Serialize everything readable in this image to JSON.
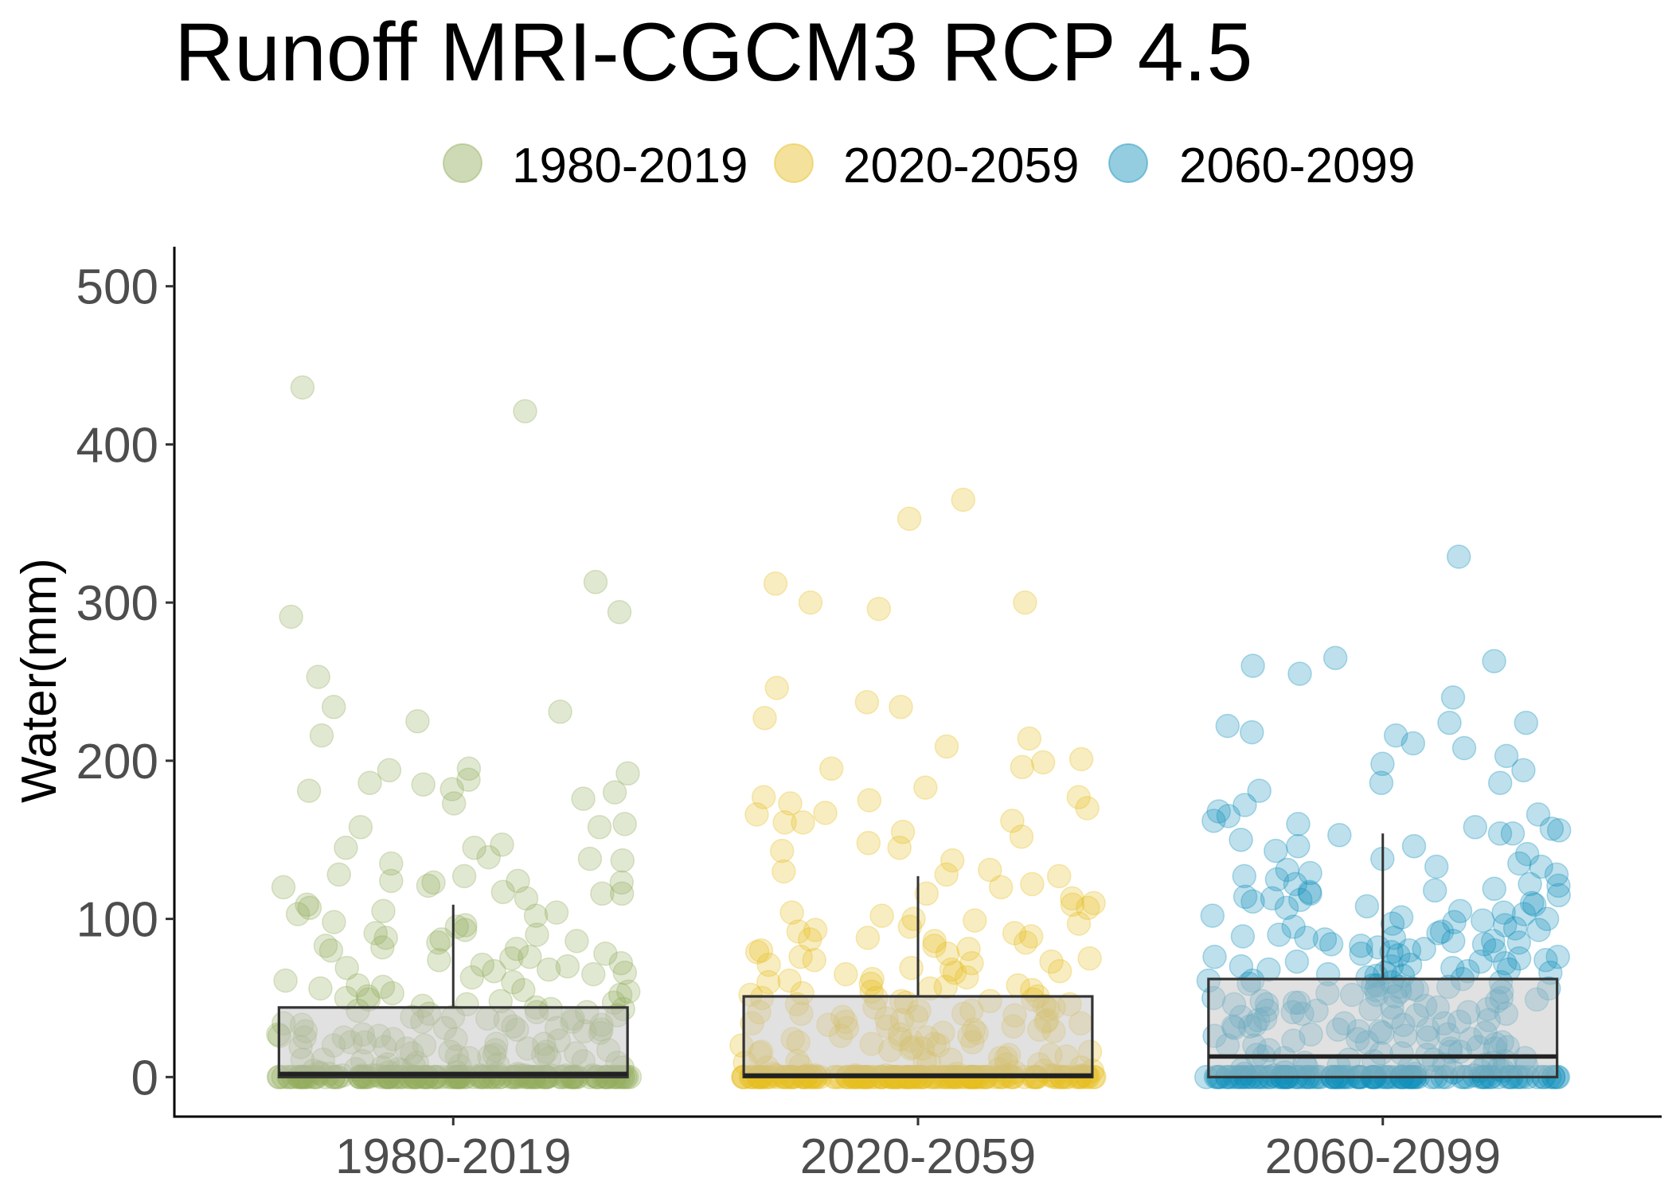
{
  "chart_data": {
    "type": "scatter",
    "overlay": "boxplot",
    "title": "Runoff MRI-CGCM3 RCP 4.5",
    "ylabel": "Water(mm)",
    "categories": [
      "1980-2019",
      "2020-2059",
      "2060-2099"
    ],
    "ylim": [
      -25,
      525
    ],
    "yticks": [
      0,
      100,
      200,
      300,
      400,
      500
    ],
    "grid": false,
    "legend": "top",
    "colors": [
      "#93AD5C",
      "#E6BD22",
      "#1190BA"
    ],
    "series": [
      {
        "name": "1980-2019",
        "box": {
          "lower_whisker": 0,
          "q1": 0,
          "median": 2,
          "q3": 44,
          "upper_whisker": 109
        },
        "values": [
          436,
          421,
          313,
          294,
          291,
          253,
          234,
          231,
          225,
          216,
          195,
          194,
          192,
          188,
          186,
          185,
          182,
          181,
          180,
          176,
          173,
          160,
          158,
          158,
          147,
          145,
          145,
          139,
          138,
          137,
          135,
          128,
          127,
          124,
          124,
          123,
          123,
          121,
          120,
          117,
          116,
          116,
          113,
          109,
          107,
          105,
          104,
          103,
          102,
          98,
          96,
          95,
          93,
          91,
          90,
          88,
          87,
          86,
          85,
          83,
          82,
          81,
          80,
          78,
          76,
          75,
          74,
          72,
          71,
          70,
          69,
          68,
          67,
          66,
          65,
          63,
          61,
          60,
          58,
          57,
          56,
          55,
          54,
          53,
          52,
          51,
          50,
          49,
          48,
          47,
          46,
          45,
          44,
          43,
          42,
          41,
          40,
          39,
          38,
          37,
          36,
          35,
          34,
          33,
          32,
          31,
          30,
          29,
          28,
          27,
          26,
          25,
          24,
          23,
          22,
          21,
          20,
          19,
          18,
          17,
          16,
          15,
          14,
          13,
          12,
          11,
          10,
          9,
          8,
          7,
          6,
          5,
          4,
          3,
          2,
          41,
          37,
          33,
          29,
          25,
          22,
          19,
          16,
          12,
          9,
          6,
          4,
          3,
          2,
          35,
          27,
          18,
          10,
          5,
          38,
          30,
          21,
          14,
          8,
          3,
          43,
          31,
          20,
          11,
          7,
          2,
          26,
          15,
          24,
          17,
          13,
          2,
          1,
          1,
          1,
          1,
          1,
          1,
          1,
          1,
          1,
          1,
          0,
          0,
          0,
          0,
          0,
          0,
          0,
          0,
          0,
          0,
          0,
          0,
          0,
          0,
          0,
          0,
          0,
          0,
          0,
          0,
          0,
          0,
          0,
          0,
          0,
          0,
          0,
          0,
          0,
          0,
          0,
          0,
          0,
          0,
          0,
          0,
          0,
          0,
          0,
          0,
          0,
          0,
          0,
          0,
          0,
          0,
          0,
          0,
          0,
          0,
          0,
          0,
          0,
          0,
          0,
          0,
          0,
          0,
          0,
          0,
          0,
          0,
          0,
          0,
          0,
          0,
          0,
          0,
          0,
          0,
          0,
          0,
          0,
          0,
          0,
          0,
          0,
          0,
          0,
          0,
          0,
          0,
          0,
          0,
          0,
          0,
          0,
          0,
          0,
          0,
          0,
          0,
          0,
          0,
          0,
          0,
          0,
          0,
          0,
          0,
          0,
          0,
          0,
          0,
          0,
          0,
          0,
          0,
          0,
          0,
          0,
          0,
          0,
          0,
          0,
          0,
          0,
          0,
          0,
          0,
          0,
          0,
          0,
          0,
          0,
          0,
          0,
          0,
          0,
          0
        ]
      },
      {
        "name": "2020-2059",
        "box": {
          "lower_whisker": 0,
          "q1": 0,
          "median": 1,
          "q3": 51,
          "upper_whisker": 127
        },
        "values": [
          365,
          353,
          312,
          300,
          300,
          296,
          246,
          237,
          234,
          227,
          214,
          209,
          201,
          199,
          196,
          195,
          183,
          177,
          177,
          175,
          173,
          170,
          167,
          166,
          162,
          161,
          161,
          155,
          152,
          148,
          145,
          143,
          137,
          131,
          130,
          128,
          127,
          122,
          120,
          116,
          113,
          110,
          109,
          107,
          104,
          102,
          100,
          99,
          97,
          95,
          93,
          92,
          91,
          89,
          88,
          87,
          86,
          85,
          83,
          81,
          80,
          79,
          78,
          76,
          75,
          74,
          73,
          72,
          71,
          69,
          68,
          67,
          66,
          65,
          63,
          62,
          61,
          60,
          59,
          58,
          57,
          56,
          55,
          54,
          53,
          52,
          51,
          50,
          49,
          48,
          47,
          46,
          45,
          44,
          43,
          42,
          41,
          40,
          39,
          38,
          37,
          36,
          35,
          34,
          33,
          32,
          31,
          30,
          29,
          28,
          27,
          26,
          25,
          24,
          23,
          22,
          21,
          20,
          19,
          18,
          17,
          16,
          15,
          14,
          13,
          12,
          11,
          10,
          9,
          8,
          7,
          6,
          5,
          4,
          3,
          2,
          48,
          44,
          40,
          36,
          32,
          28,
          24,
          20,
          16,
          12,
          8,
          4,
          46,
          38,
          30,
          22,
          14,
          6,
          42,
          34,
          26,
          18,
          10,
          2,
          50,
          35,
          21,
          9,
          1,
          1,
          1,
          1,
          1,
          1,
          1,
          1,
          1,
          1,
          0,
          0,
          0,
          0,
          0,
          0,
          0,
          0,
          0,
          0,
          0,
          0,
          0,
          0,
          0,
          0,
          0,
          0,
          0,
          0,
          0,
          0,
          0,
          0,
          0,
          0,
          0,
          0,
          0,
          0,
          0,
          0,
          0,
          0,
          0,
          0,
          0,
          0,
          0,
          0,
          0,
          0,
          0,
          0,
          0,
          0,
          0,
          0,
          0,
          0,
          0,
          0,
          0,
          0,
          0,
          0,
          0,
          0,
          0,
          0,
          0,
          0,
          0,
          0,
          0,
          0,
          0,
          0,
          0,
          0,
          0,
          0,
          0,
          0,
          0,
          0,
          0,
          0,
          0,
          0,
          0,
          0,
          0,
          0,
          0,
          0,
          0,
          0,
          0,
          0,
          0,
          0,
          0,
          0,
          0,
          0,
          0,
          0,
          0,
          0,
          0,
          0,
          0,
          0,
          0,
          0,
          0,
          0,
          0,
          0,
          0,
          0,
          0,
          0,
          0,
          0,
          0,
          0,
          0,
          0,
          0,
          0,
          0,
          0,
          0,
          0,
          0,
          0,
          0,
          0,
          0,
          0,
          0,
          0,
          0,
          0,
          0,
          0,
          0,
          0,
          0,
          0,
          0,
          0,
          0,
          0,
          0,
          0,
          0,
          0
        ]
      },
      {
        "name": "2060-2099",
        "box": {
          "lower_whisker": 0,
          "q1": 0,
          "median": 13,
          "q3": 62,
          "upper_whisker": 154
        },
        "values": [
          329,
          265,
          263,
          260,
          255,
          240,
          224,
          224,
          222,
          218,
          216,
          211,
          208,
          203,
          198,
          194,
          186,
          186,
          181,
          172,
          168,
          166,
          165,
          162,
          160,
          158,
          157,
          156,
          154,
          154,
          153,
          150,
          146,
          146,
          143,
          141,
          138,
          135,
          133,
          133,
          131,
          129,
          128,
          127,
          125,
          122,
          122,
          121,
          119,
          118,
          117,
          116,
          115,
          114,
          113,
          112,
          111,
          110,
          109,
          108,
          107,
          105,
          104,
          103,
          102,
          101,
          100,
          99,
          98,
          97,
          96,
          95,
          94,
          93,
          92,
          91,
          90,
          89,
          88,
          88,
          87,
          86,
          86,
          85,
          84,
          84,
          83,
          82,
          81,
          80,
          80,
          79,
          78,
          77,
          76,
          76,
          75,
          74,
          73,
          73,
          72,
          71,
          70,
          70,
          69,
          68,
          68,
          67,
          66,
          66,
          65,
          64,
          64,
          63,
          62,
          61,
          60,
          59,
          58,
          57,
          56,
          55,
          54,
          53,
          52,
          51,
          50,
          49,
          48,
          47,
          46,
          45,
          44,
          43,
          42,
          41,
          40,
          39,
          38,
          37,
          36,
          35,
          34,
          33,
          32,
          31,
          30,
          29,
          28,
          27,
          26,
          25,
          24,
          23,
          22,
          21,
          20,
          19,
          18,
          17,
          16,
          15,
          14,
          13,
          60,
          56,
          52,
          48,
          44,
          40,
          36,
          32,
          28,
          24,
          20,
          16,
          58,
          50,
          42,
          34,
          26,
          18,
          54,
          46,
          38,
          30,
          22,
          14,
          57,
          43,
          29,
          15,
          61,
          47,
          33,
          19,
          55,
          41,
          27,
          12,
          11,
          10,
          9,
          8,
          7,
          6,
          5,
          4,
          3,
          2,
          1,
          10,
          8,
          6,
          4,
          2,
          12,
          9,
          5,
          3,
          1,
          11,
          7,
          0,
          0,
          0,
          0,
          0,
          0,
          0,
          0,
          0,
          0,
          0,
          0,
          0,
          0,
          0,
          0,
          0,
          0,
          0,
          0,
          0,
          0,
          0,
          0,
          0,
          0,
          0,
          0,
          0,
          0,
          0,
          0,
          0,
          0,
          0,
          0,
          0,
          0,
          0,
          0,
          0,
          0,
          0,
          0,
          0,
          0,
          0,
          0,
          0,
          0,
          0,
          0,
          0,
          0,
          0,
          0,
          0,
          0,
          0,
          0,
          0,
          0,
          0,
          0,
          0,
          0,
          0,
          0,
          0,
          0,
          0,
          0,
          0,
          0,
          0,
          0,
          0,
          0,
          0,
          0,
          0,
          0,
          0,
          0,
          0,
          0,
          0,
          0,
          0,
          0,
          0,
          0,
          0,
          0,
          0,
          0,
          0,
          0,
          0,
          0,
          0,
          0,
          0,
          0,
          0,
          0,
          0,
          0,
          0,
          0
        ]
      }
    ]
  }
}
